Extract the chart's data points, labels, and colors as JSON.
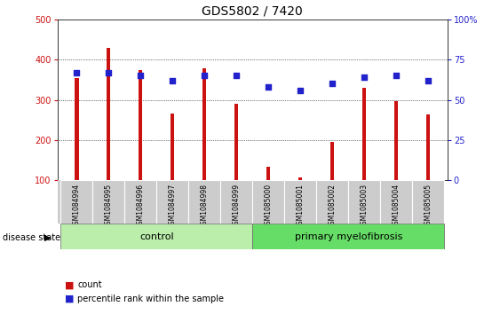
{
  "title": "GDS5802 / 7420",
  "samples": [
    "GSM1084994",
    "GSM1084995",
    "GSM1084996",
    "GSM1084997",
    "GSM1084998",
    "GSM1084999",
    "GSM1085000",
    "GSM1085001",
    "GSM1085002",
    "GSM1085003",
    "GSM1085004",
    "GSM1085005"
  ],
  "counts": [
    355,
    430,
    373,
    265,
    378,
    290,
    133,
    108,
    196,
    330,
    297,
    263
  ],
  "percentiles": [
    67,
    67,
    65,
    62,
    65,
    65,
    58,
    56,
    60,
    64,
    65,
    62
  ],
  "ylim_left": [
    100,
    500
  ],
  "ylim_right": [
    0,
    100
  ],
  "yticks_left": [
    100,
    200,
    300,
    400,
    500
  ],
  "yticks_right": [
    0,
    25,
    50,
    75,
    100
  ],
  "ytick_labels_right": [
    "0",
    "25",
    "50",
    "75",
    "100%"
  ],
  "bar_color": "#cc1111",
  "dot_color": "#2222cc",
  "control_samples": 6,
  "group_labels": [
    "control",
    "primary myelofibrosis"
  ],
  "control_bg": "#bbeeaa",
  "pmf_bg": "#66dd66",
  "xlabel_bg": "#cccccc",
  "legend_count_label": "count",
  "legend_pct_label": "percentile rank within the sample",
  "disease_state_label": "disease state",
  "title_fontsize": 10,
  "tick_fontsize": 7,
  "axis_label_color_left": "#cc1111",
  "axis_label_color_right": "#2222cc",
  "bar_width": 0.12,
  "dot_size": 20
}
